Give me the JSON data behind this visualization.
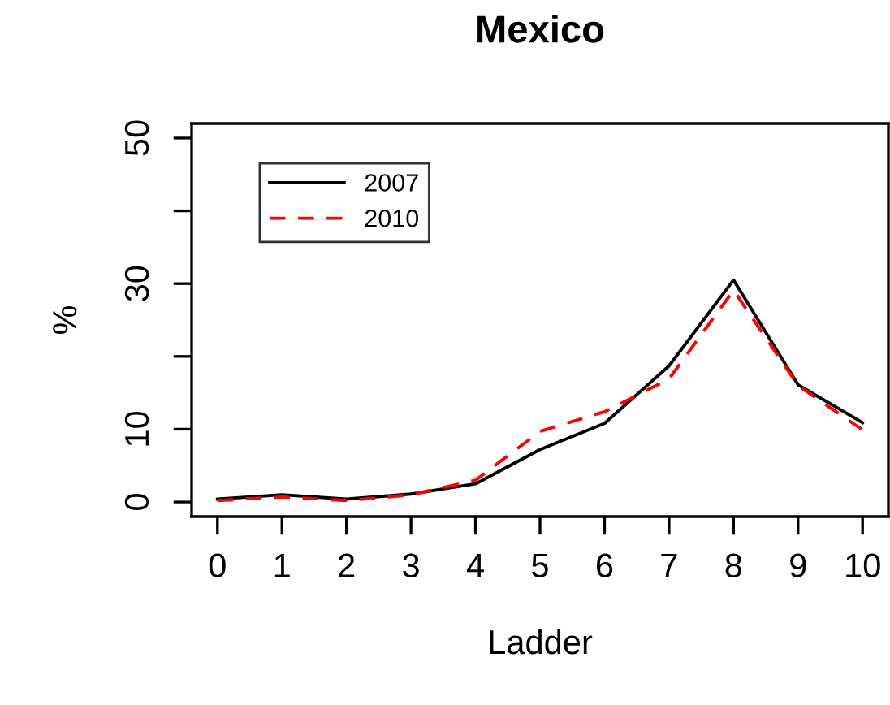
{
  "chart_data": {
    "type": "line",
    "title": "Mexico",
    "xlabel": "Ladder",
    "ylabel": "%",
    "x": [
      0,
      1,
      2,
      3,
      4,
      5,
      6,
      7,
      8,
      9,
      10
    ],
    "series": [
      {
        "name": "2007",
        "color": "#000000",
        "line_style": "solid",
        "values": [
          0.4,
          1.0,
          0.4,
          1.1,
          2.5,
          7.2,
          10.8,
          18.7,
          30.5,
          16.1,
          10.9
        ]
      },
      {
        "name": "2010",
        "color": "#ff0000",
        "line_style": "dashed",
        "values": [
          0.2,
          0.7,
          0.2,
          1.0,
          3.0,
          9.7,
          12.4,
          16.9,
          29.1,
          16.0,
          9.9
        ]
      }
    ],
    "xlim": [
      -0.4,
      10.4
    ],
    "xticks": [
      0,
      1,
      2,
      3,
      4,
      5,
      6,
      7,
      8,
      9,
      10
    ],
    "ylim": [
      -2,
      52
    ],
    "yticks": [
      0,
      10,
      {
        "value": 20,
        "label": null
      },
      30,
      {
        "value": 40,
        "label": null
      },
      50
    ],
    "grid": false,
    "legend": "top left",
    "marker": "none"
  }
}
